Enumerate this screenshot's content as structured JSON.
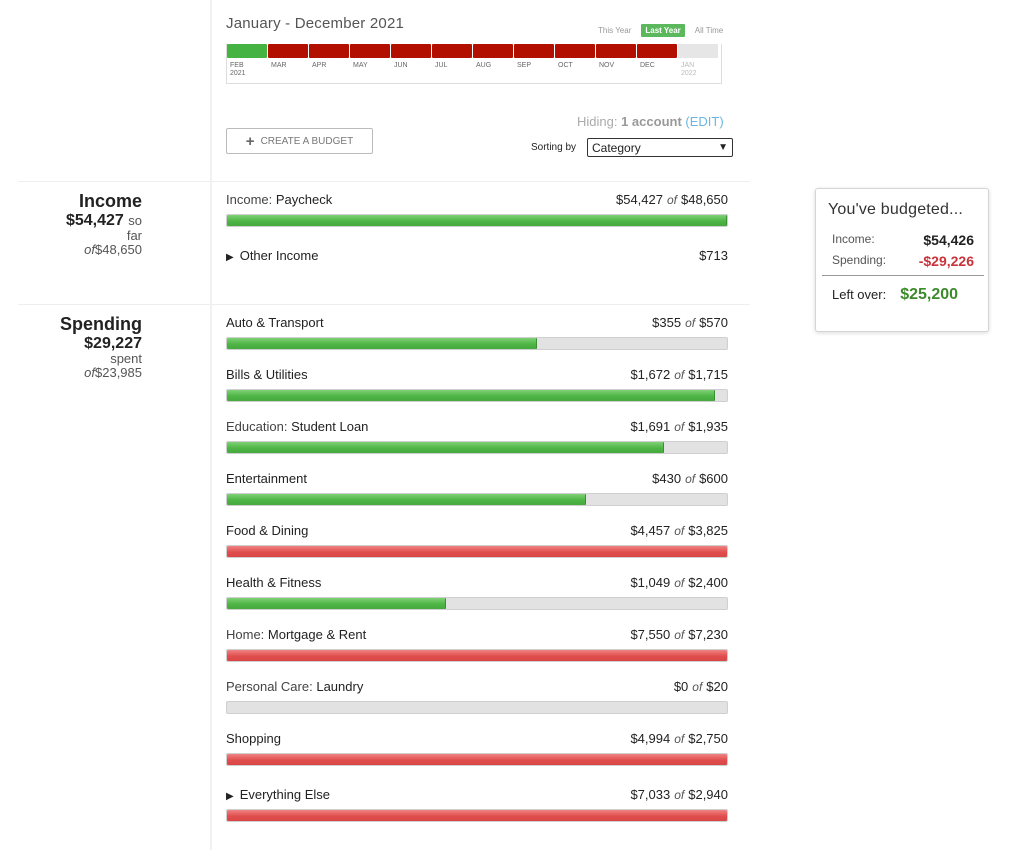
{
  "summary": {
    "income": {
      "title": "Income",
      "amount": "$54,427",
      "suffix": "so",
      "sub2": "far",
      "of_label": "of",
      "of_amount": "$48,650"
    },
    "spending": {
      "title": "Spending",
      "amount": "$29,227",
      "suffix": "",
      "sub2": "spent",
      "of_label": "of",
      "of_amount": "$23,985"
    }
  },
  "header": {
    "date_range": "January - December 2021",
    "range_links": {
      "this_year": "This Year",
      "last_year": "Last Year",
      "all_time": "All Time",
      "active": "last_year"
    },
    "timeline": {
      "months": [
        {
          "label": "FEB",
          "year": "2021",
          "status": "green"
        },
        {
          "label": "MAR",
          "year": "",
          "status": "red"
        },
        {
          "label": "APR",
          "year": "",
          "status": "red"
        },
        {
          "label": "MAY",
          "year": "",
          "status": "red"
        },
        {
          "label": "JUN",
          "year": "",
          "status": "red"
        },
        {
          "label": "JUL",
          "year": "",
          "status": "red"
        },
        {
          "label": "AUG",
          "year": "",
          "status": "red"
        },
        {
          "label": "SEP",
          "year": "",
          "status": "red"
        },
        {
          "label": "OCT",
          "year": "",
          "status": "red"
        },
        {
          "label": "NOV",
          "year": "",
          "status": "red"
        },
        {
          "label": "DEC",
          "year": "",
          "status": "red"
        },
        {
          "label": "JAN",
          "year": "2022",
          "status": "grey"
        }
      ]
    },
    "hiding": {
      "prefix": "Hiding:",
      "value": "1 account",
      "edit": "(EDIT)"
    },
    "create_budget": "CREATE A BUDGET",
    "sort": {
      "label": "Sorting by",
      "value": "Category"
    }
  },
  "income_rows": [
    {
      "prefix": "Income:",
      "name": "Paycheck",
      "expandable": false,
      "spent": "$54,427",
      "of": "of",
      "budget": "$48,650",
      "progress": 1.0,
      "color": "green",
      "show_bar": true
    },
    {
      "prefix": "",
      "name": "Other Income",
      "expandable": true,
      "spent": "$713",
      "of": "",
      "budget": "",
      "progress": 0,
      "color": "none",
      "show_bar": false
    }
  ],
  "spending_rows": [
    {
      "prefix": "",
      "name": "Auto & Transport",
      "expandable": false,
      "spent": "$355",
      "of": "of",
      "budget": "$570",
      "progress": 0.62,
      "color": "green"
    },
    {
      "prefix": "",
      "name": "Bills & Utilities",
      "expandable": false,
      "spent": "$1,672",
      "of": "of",
      "budget": "$1,715",
      "progress": 0.975,
      "color": "green"
    },
    {
      "prefix": "Education:",
      "name": "Student Loan",
      "expandable": false,
      "spent": "$1,691",
      "of": "of",
      "budget": "$1,935",
      "progress": 0.874,
      "color": "green"
    },
    {
      "prefix": "",
      "name": "Entertainment",
      "expandable": false,
      "spent": "$430",
      "of": "of",
      "budget": "$600",
      "progress": 0.717,
      "color": "green"
    },
    {
      "prefix": "",
      "name": "Food & Dining",
      "expandable": false,
      "spent": "$4,457",
      "of": "of",
      "budget": "$3,825",
      "progress": 1.0,
      "color": "red"
    },
    {
      "prefix": "",
      "name": "Health & Fitness",
      "expandable": false,
      "spent": "$1,049",
      "of": "of",
      "budget": "$2,400",
      "progress": 0.437,
      "color": "green"
    },
    {
      "prefix": "Home:",
      "name": "Mortgage & Rent",
      "expandable": false,
      "spent": "$7,550",
      "of": "of",
      "budget": "$7,230",
      "progress": 1.0,
      "color": "red"
    },
    {
      "prefix": "Personal Care:",
      "name": "Laundry",
      "expandable": false,
      "spent": "$0",
      "of": "of",
      "budget": "$20",
      "progress": 0,
      "color": "green"
    },
    {
      "prefix": "",
      "name": "Shopping",
      "expandable": false,
      "spent": "$4,994",
      "of": "of",
      "budget": "$2,750",
      "progress": 1.0,
      "color": "red"
    },
    {
      "prefix": "",
      "name": "Everything Else",
      "expandable": true,
      "spent": "$7,033",
      "of": "of",
      "budget": "$2,940",
      "progress": 1.0,
      "color": "red"
    }
  ],
  "budget_card": {
    "heading": "You've budgeted...",
    "income_label": "Income:",
    "income_value": "$54,426",
    "spending_label": "Spending:",
    "spending_value": "-$29,226",
    "leftover_label": "Left over:",
    "leftover_value": "$25,200"
  },
  "colors": {
    "green": "#4fb546",
    "red": "#e04e4e",
    "timeline_red": "#b30f00",
    "leftover": "#3d8a2c",
    "negative": "#c9333a"
  }
}
